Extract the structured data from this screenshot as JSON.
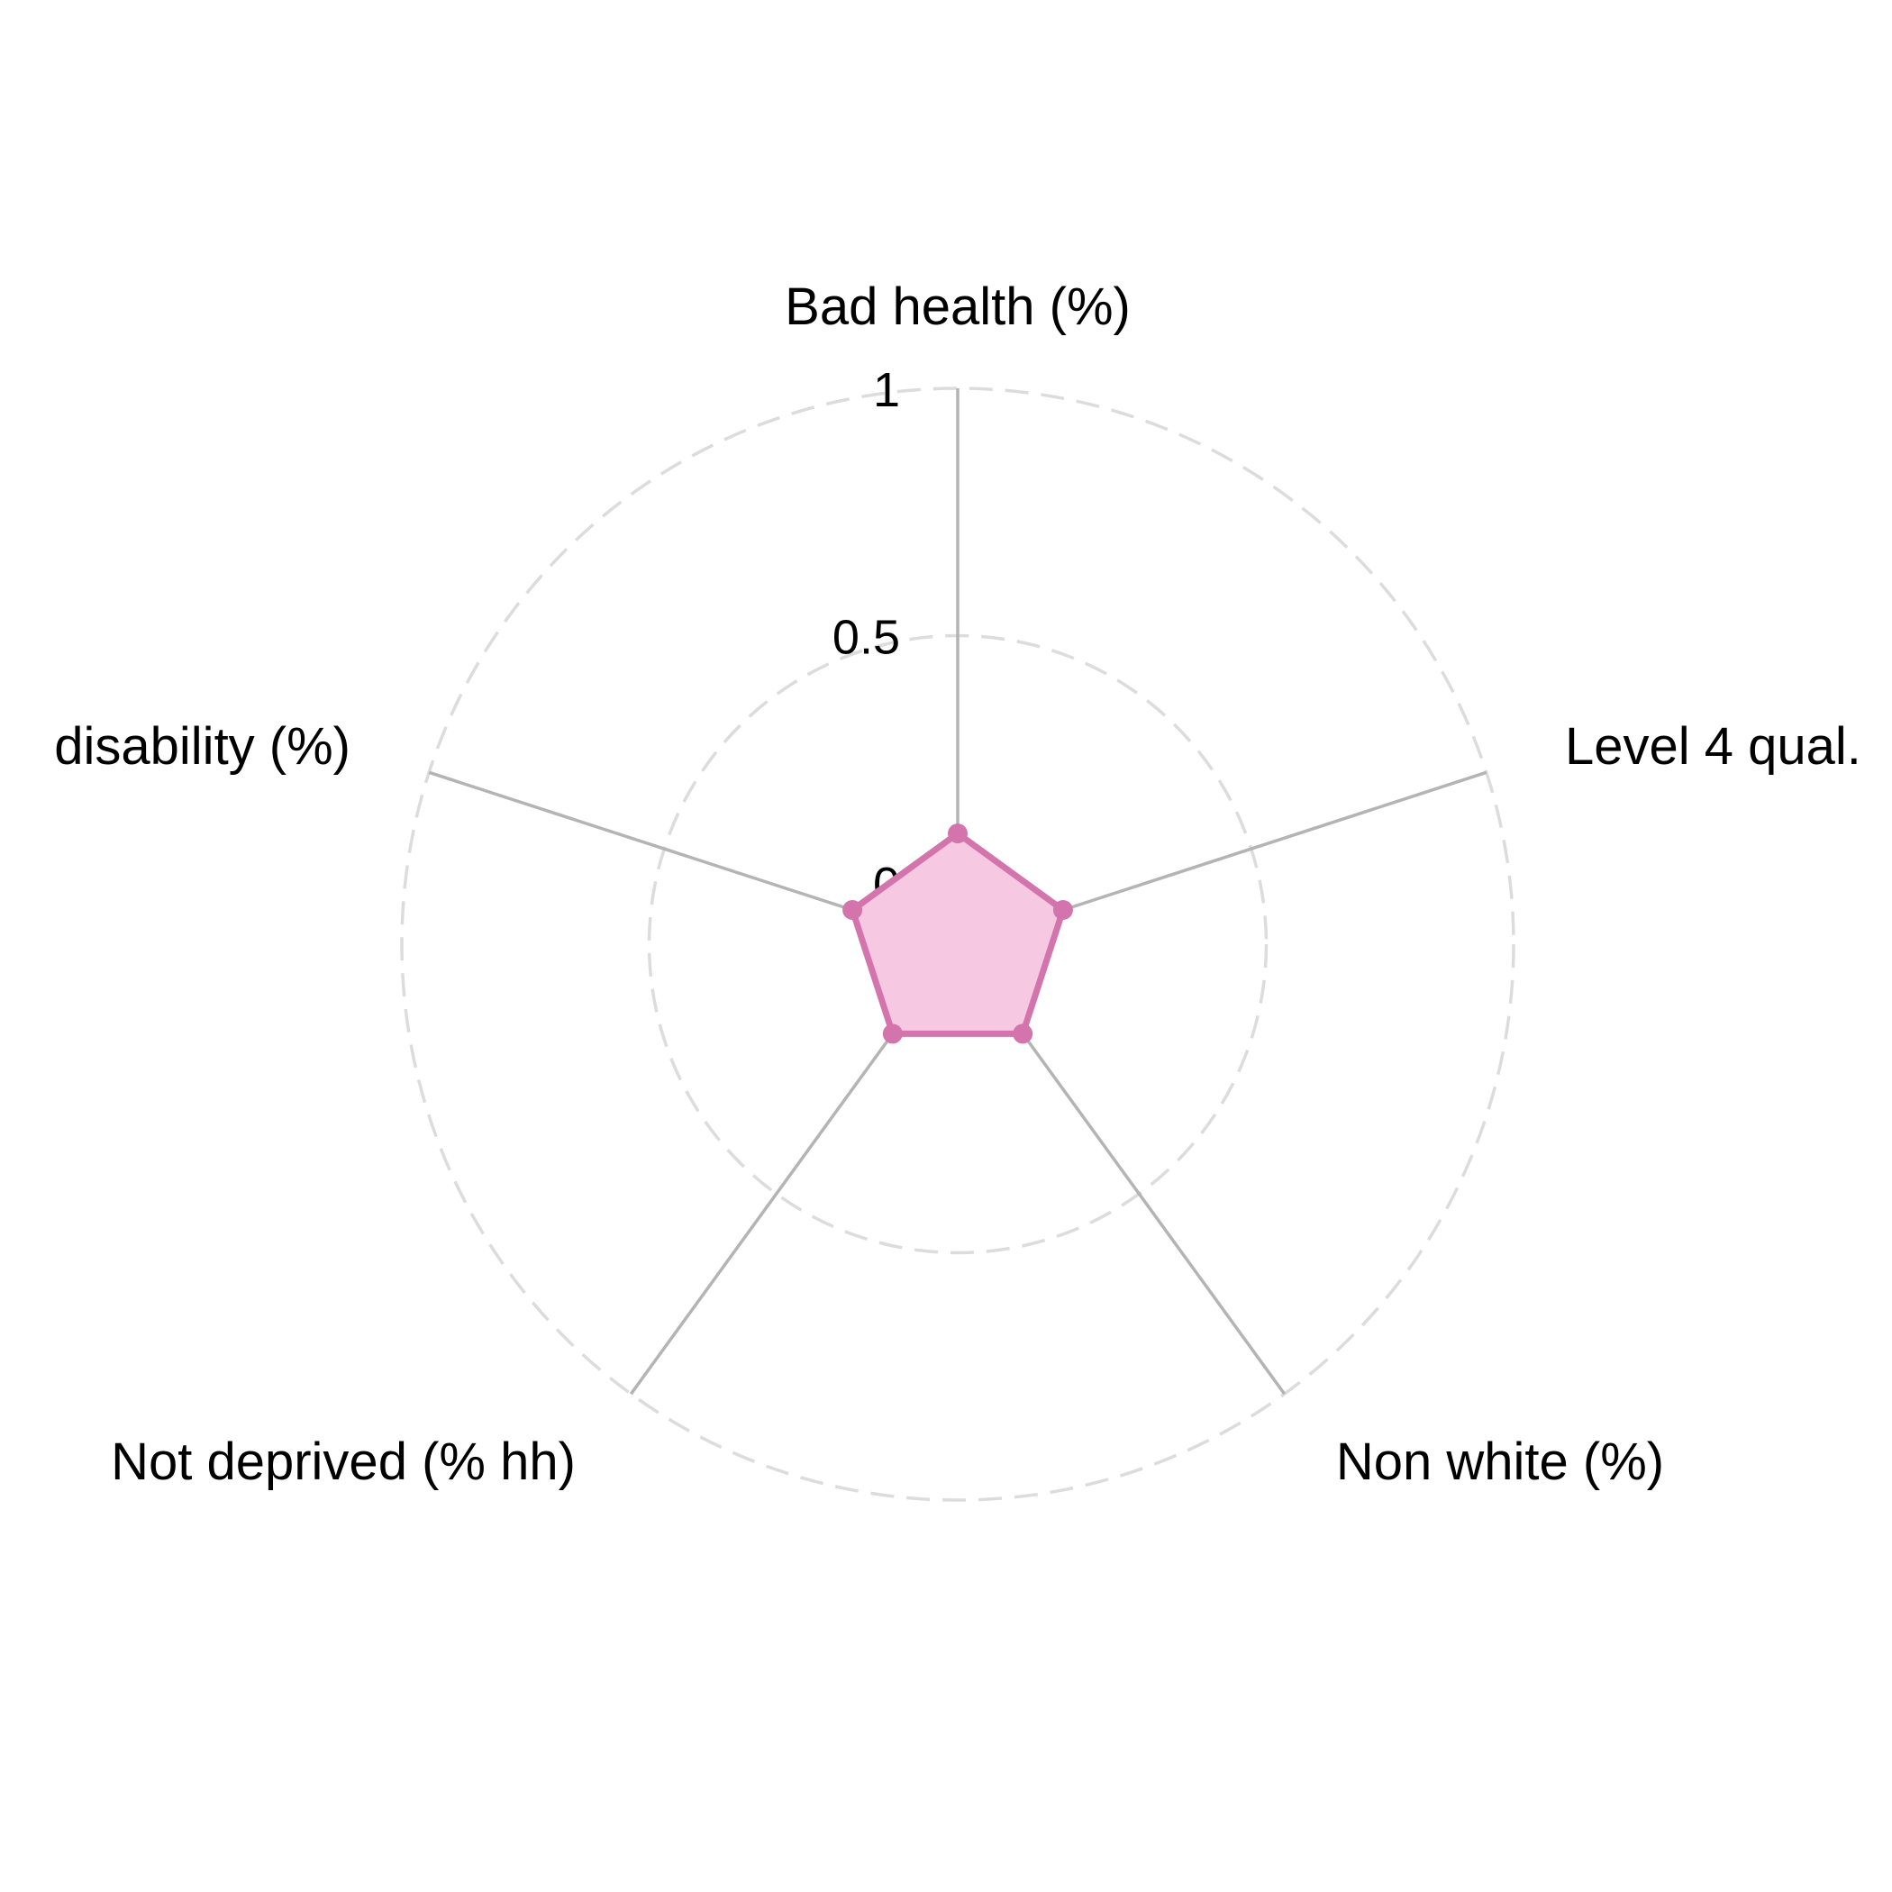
{
  "chart_data": {
    "type": "radar",
    "axes": [
      "Bad health (%)",
      "Level 4 qual.",
      "Non white (%)",
      "Not deprived (% hh)",
      "disability (%)"
    ],
    "series": [
      {
        "values": [
          0.1,
          0.1,
          0.1,
          0.1,
          0.1
        ]
      }
    ],
    "rlim": [
      0,
      1
    ],
    "r_ticks": [
      {
        "value": 0,
        "label": "0"
      },
      {
        "value": 0.5,
        "label": "0.5"
      },
      {
        "value": 1,
        "label": "1"
      }
    ],
    "grid": true,
    "colors": {
      "series_line": "#d375ac",
      "series_fill": "#f6c8e2",
      "spoke": "#b4b4b4",
      "grid_ring": "#dcdcdc"
    }
  }
}
